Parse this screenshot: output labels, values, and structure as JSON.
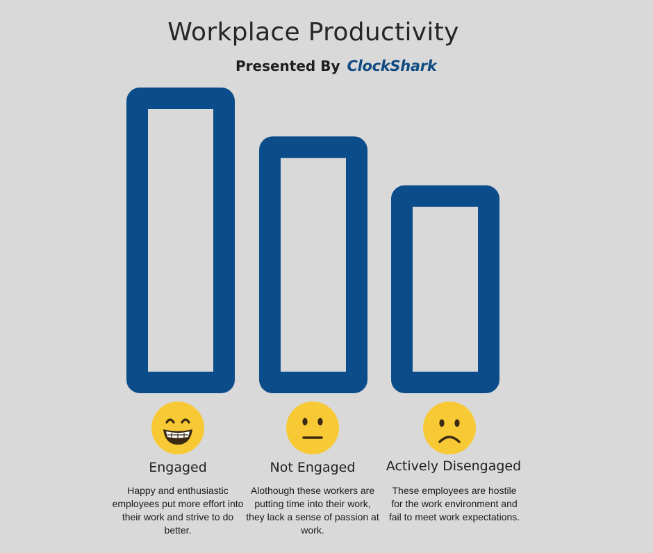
{
  "header": {
    "title": "Workplace Productivity",
    "presented_by": "Presented By",
    "brand": "ClockShark"
  },
  "colors": {
    "background": "#d9d9d9",
    "bar_outline": "#0b4c8a",
    "emoji_face": "#f7c935",
    "emoji_features": "#3a2a14"
  },
  "chart_data": {
    "type": "bar",
    "categories": [
      "Engaged",
      "Not Engaged",
      "Actively Disengaged"
    ],
    "values": [
      100,
      84,
      68
    ],
    "style": "hollow outlined bars, no axes, no gridlines, no legend"
  },
  "categories": [
    {
      "label": "Engaged",
      "icon": "grinning-face-icon",
      "description": "Happy and enthusiastic employees put more effort into their work and strive to do better."
    },
    {
      "label": "Not Engaged",
      "icon": "neutral-face-icon",
      "description": "Alothough these workers are putting time into their work, they lack a sense of passion at work."
    },
    {
      "label": "Actively Disengaged",
      "icon": "frowning-face-icon",
      "description": "These employees are hostile for the work environment and fail to meet work expectations."
    }
  ]
}
